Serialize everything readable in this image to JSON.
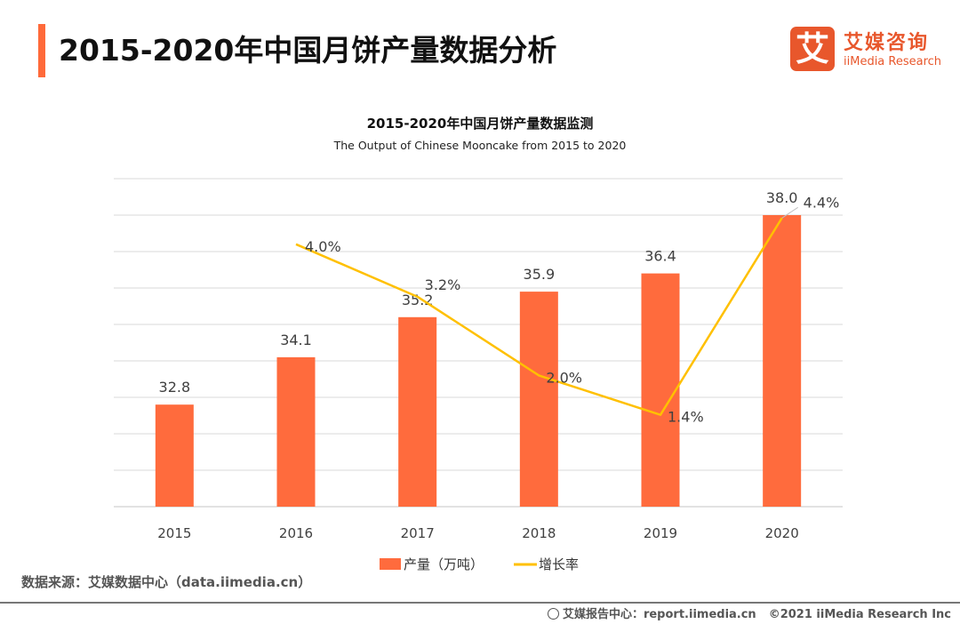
{
  "header": {
    "title": "2015-2020年中国月饼产量数据分析",
    "logo_mark": "艾",
    "logo_cn": "艾媒咨询",
    "logo_en": "iiMedia Research"
  },
  "colors": {
    "accent": "#ff6a3a",
    "bar": "#ff6b3d",
    "line": "#ffc000",
    "grid": "#d9d9d9",
    "logo": "#e8572c"
  },
  "chart_data": {
    "type": "bar",
    "title": "2015-2020年中国月饼产量数据监测",
    "subtitle": "The  Output of Chinese Mooncake from 2015 to 2020",
    "categories": [
      "2015",
      "2016",
      "2017",
      "2018",
      "2019",
      "2020"
    ],
    "series": [
      {
        "name": "产量（万吨）",
        "type": "bar",
        "axis": "primary",
        "values": [
          32.8,
          34.1,
          35.2,
          35.9,
          36.4,
          38.0
        ],
        "labels": [
          "32.8",
          "34.1",
          "35.2",
          "35.9",
          "36.4",
          "38.0"
        ]
      },
      {
        "name": "增长率",
        "type": "line",
        "axis": "secondary",
        "values": [
          null,
          4.0,
          3.2,
          2.0,
          1.4,
          4.4
        ],
        "labels": [
          "",
          "4.0%",
          "3.2%",
          "2.0%",
          "1.4%",
          "4.4%"
        ]
      }
    ],
    "xlabel": "",
    "ylabel": "",
    "ylim": [
      30,
      39
    ],
    "y2lim": [
      0,
      5
    ],
    "y_axis_visible": false,
    "grid": true,
    "legend_position": "bottom-center"
  },
  "source": "数据来源：艾媒数据中心（data.iimedia.cn）",
  "footer": {
    "report_center": "艾媒报告中心：report.iimedia.cn",
    "copyright": "©2021  iiMedia Research  Inc"
  }
}
